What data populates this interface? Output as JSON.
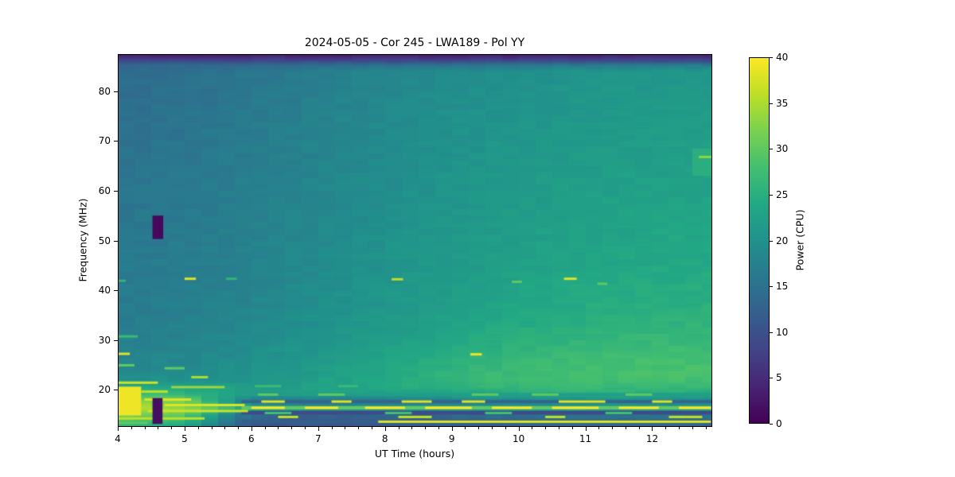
{
  "figure": {
    "background": "#ffffff"
  },
  "chart_data": {
    "type": "heatmap",
    "title": "2024-05-05 - Cor 245 - LWA189 - Pol YY",
    "xlabel": "UT Time (hours)",
    "ylabel": "Frequency (MHz)",
    "x_range": [
      4.0,
      12.9
    ],
    "y_range": [
      12.5,
      87.5
    ],
    "x_major_ticks": [
      4,
      5,
      6,
      7,
      8,
      9,
      10,
      11,
      12
    ],
    "x_minor_step": 0.2,
    "y_major_ticks": [
      20,
      30,
      40,
      50,
      60,
      70,
      80
    ],
    "colorbar": {
      "label": "Power (CPU)",
      "ticks": [
        0,
        5,
        10,
        15,
        20,
        25,
        30,
        35,
        40
      ],
      "range": [
        0,
        40
      ]
    },
    "colormap": {
      "name": "viridis",
      "stops": [
        [
          0,
          "#440154"
        ],
        [
          0.1,
          "#482475"
        ],
        [
          0.2,
          "#414487"
        ],
        [
          0.3,
          "#355f8d"
        ],
        [
          0.4,
          "#2a788e"
        ],
        [
          0.5,
          "#21918c"
        ],
        [
          0.6,
          "#22a884"
        ],
        [
          0.7,
          "#44bf70"
        ],
        [
          0.8,
          "#7ad151"
        ],
        [
          0.9,
          "#bddf26"
        ],
        [
          1,
          "#fde725"
        ]
      ]
    },
    "column_quantization_hours": 0.25,
    "grid": {
      "t": [
        4,
        5,
        6,
        7,
        8,
        9,
        10,
        11,
        12,
        12.9
      ],
      "f": [
        87.5,
        86.9,
        86.1,
        85.2,
        84.0,
        80.0,
        75.0,
        70.0,
        65.0,
        60.0,
        55.0,
        50.0,
        45.0,
        40.0,
        35.0,
        31.0,
        28.0,
        25.5,
        23.5,
        21.8,
        20.3,
        19.0,
        17.6,
        16.2,
        15.0,
        13.8,
        12.5
      ],
      "values": [
        [
          2,
          2,
          2,
          2,
          2,
          2,
          2,
          2,
          2,
          2
        ],
        [
          5,
          5,
          5,
          5,
          5,
          5,
          5,
          5,
          5,
          5
        ],
        [
          9,
          9,
          9,
          9,
          9,
          9,
          9,
          9,
          9,
          9
        ],
        [
          13,
          13.5,
          14,
          14.5,
          15,
          15.5,
          16,
          16.5,
          17,
          17
        ],
        [
          14,
          14.8,
          15.8,
          17,
          18.2,
          19.2,
          20,
          20.5,
          21,
          21
        ],
        [
          14.2,
          15,
          16,
          17.2,
          18.5,
          19.5,
          20.3,
          20.8,
          21.3,
          21.3
        ],
        [
          14.6,
          15.3,
          16.3,
          17.5,
          18.8,
          19.8,
          20.6,
          21.2,
          21.7,
          21.7
        ],
        [
          15,
          15.6,
          16.6,
          17.8,
          19,
          20,
          20.9,
          21.5,
          22,
          22.2
        ],
        [
          15.2,
          15.9,
          16.9,
          18,
          19.2,
          20.3,
          21.2,
          21.9,
          22.4,
          22.6
        ],
        [
          15.5,
          16.1,
          17.1,
          18.3,
          19.5,
          20.6,
          21.5,
          22.2,
          22.8,
          23
        ],
        [
          15.7,
          16.3,
          17.3,
          18.5,
          19.8,
          20.9,
          21.9,
          22.6,
          23.2,
          23.4
        ],
        [
          16,
          16.5,
          17.5,
          18.8,
          20,
          21.3,
          22.3,
          23,
          23.6,
          23.8
        ],
        [
          16.2,
          16.7,
          17.8,
          19,
          20.4,
          21.7,
          22.7,
          23.5,
          24,
          24.2
        ],
        [
          16.5,
          17,
          18,
          19.3,
          20.8,
          22.2,
          23.3,
          24,
          24.6,
          24.8
        ],
        [
          16.8,
          17.3,
          18.4,
          19.8,
          21.3,
          22.8,
          24,
          24.8,
          25.3,
          25.4
        ],
        [
          17.2,
          17.7,
          18.8,
          20.3,
          22,
          23.6,
          24.8,
          25.7,
          26.2,
          26.2
        ],
        [
          17.6,
          18.1,
          19.3,
          21,
          22.8,
          24.5,
          25.8,
          26.7,
          27.2,
          27.2
        ],
        [
          18,
          18.5,
          19.8,
          21.5,
          23.4,
          25.2,
          26.6,
          27.5,
          28,
          27.8
        ],
        [
          18.6,
          19,
          20.3,
          22,
          24,
          25.8,
          27.2,
          28,
          28.4,
          28
        ],
        [
          20,
          20.5,
          21,
          22.5,
          24.3,
          26,
          27.3,
          27.8,
          28,
          27.6
        ],
        [
          25,
          24,
          22,
          22.8,
          24,
          25.2,
          26.2,
          26.6,
          26.6,
          26
        ],
        [
          28,
          26.5,
          21.5,
          21.8,
          22.3,
          23.3,
          24.2,
          24.6,
          24.6,
          24
        ],
        [
          33,
          32,
          16,
          15.3,
          15.8,
          16.3,
          17.3,
          18,
          18,
          17.6
        ],
        [
          36,
          34,
          24,
          21,
          21,
          21,
          21.5,
          22,
          22,
          21.5
        ],
        [
          33,
          30,
          13.5,
          12.5,
          13,
          13.5,
          14.5,
          15,
          15,
          14.8
        ],
        [
          30,
          26,
          12.5,
          11.5,
          12,
          12.5,
          13.5,
          14,
          13.8,
          13.6
        ],
        [
          26,
          22,
          11,
          10.5,
          11,
          11.5,
          12.5,
          13,
          12.8,
          12.6
        ]
      ]
    },
    "features": [
      {
        "type": "rect",
        "t": [
          5.85,
          12.9
        ],
        "f": [
          18.7,
          19.3
        ],
        "v": 22
      },
      {
        "type": "rect",
        "t": [
          5.85,
          12.9
        ],
        "f": [
          17.3,
          17.9
        ],
        "v": 13
      },
      {
        "type": "rect",
        "t": [
          5.85,
          12.9
        ],
        "f": [
          16.0,
          16.7
        ],
        "v": 30
      },
      {
        "type": "rect",
        "t": [
          5.85,
          12.9
        ],
        "f": [
          15.0,
          15.7
        ],
        "v": 9
      },
      {
        "type": "rect",
        "t": [
          5.85,
          12.9
        ],
        "f": [
          13.3,
          13.9
        ],
        "v": 12
      },
      {
        "type": "rect",
        "t": [
          4.0,
          4.35
        ],
        "f": [
          14.8,
          20.6
        ],
        "v": 39
      },
      {
        "type": "line",
        "t": [
          4.0,
          4.6
        ],
        "f": 21.4,
        "v": 37
      },
      {
        "type": "line",
        "t": [
          4.35,
          4.75
        ],
        "f": 19.6,
        "v": 36
      },
      {
        "type": "line",
        "t": [
          4.4,
          5.1
        ],
        "f": 18.0,
        "v": 38
      },
      {
        "type": "line",
        "t": [
          4.7,
          5.9
        ],
        "f": 16.9,
        "v": 38
      },
      {
        "type": "line",
        "t": [
          4.45,
          5.95
        ],
        "f": 15.7,
        "v": 37
      },
      {
        "type": "line",
        "t": [
          4.0,
          5.3
        ],
        "f": 14.2,
        "v": 36
      },
      {
        "type": "line",
        "t": [
          4.8,
          5.6
        ],
        "f": 20.5,
        "v": 34
      },
      {
        "type": "line",
        "t": [
          5.1,
          5.35
        ],
        "f": 22.5,
        "v": 35
      },
      {
        "type": "line",
        "t": [
          4.7,
          5.0
        ],
        "f": 24.3,
        "v": 30
      },
      {
        "type": "line",
        "t": [
          4.0,
          4.25
        ],
        "f": 24.9,
        "v": 30
      },
      {
        "type": "line",
        "t": [
          4.0,
          4.45
        ],
        "f": 13.3,
        "v": 30
      },
      {
        "type": "line",
        "t": [
          4.0,
          4.18
        ],
        "f": 27.2,
        "v": 38
      },
      {
        "type": "line",
        "t": [
          4.0,
          4.3
        ],
        "f": 30.7,
        "v": 27
      },
      {
        "type": "line",
        "t": [
          4.0,
          4.12
        ],
        "f": 41.9,
        "v": 26
      },
      {
        "type": "line",
        "t": [
          5.0,
          5.17
        ],
        "f": 42.3,
        "v": 38
      },
      {
        "type": "line",
        "t": [
          5.62,
          5.78
        ],
        "f": 42.3,
        "v": 26
      },
      {
        "type": "line",
        "t": [
          8.1,
          8.27
        ],
        "f": 42.2,
        "v": 36
      },
      {
        "type": "line",
        "t": [
          9.28,
          9.45
        ],
        "f": 27.1,
        "v": 39
      },
      {
        "type": "line",
        "t": [
          9.9,
          10.05
        ],
        "f": 41.7,
        "v": 30
      },
      {
        "type": "line",
        "t": [
          10.68,
          10.87
        ],
        "f": 42.3,
        "v": 38
      },
      {
        "type": "line",
        "t": [
          11.18,
          11.33
        ],
        "f": 41.3,
        "v": 30
      },
      {
        "type": "dashes",
        "f": 16.35,
        "v": 40,
        "segs": [
          [
            6.0,
            6.5
          ],
          [
            6.8,
            7.3
          ],
          [
            7.7,
            8.3
          ],
          [
            8.6,
            9.3
          ],
          [
            9.6,
            10.2
          ],
          [
            10.5,
            11.2
          ],
          [
            11.5,
            12.1
          ],
          [
            12.4,
            12.88
          ]
        ]
      },
      {
        "type": "dashes",
        "f": 17.6,
        "v": 38,
        "segs": [
          [
            6.15,
            6.5
          ],
          [
            7.2,
            7.5
          ],
          [
            8.25,
            8.7
          ],
          [
            9.15,
            9.5
          ],
          [
            10.6,
            11.3
          ],
          [
            12.0,
            12.3
          ]
        ]
      },
      {
        "type": "dashes",
        "f": 15.3,
        "v": 28,
        "segs": [
          [
            6.2,
            6.6
          ],
          [
            8.0,
            8.4
          ],
          [
            9.5,
            9.9
          ],
          [
            11.3,
            11.7
          ]
        ]
      },
      {
        "type": "dashes",
        "f": 14.5,
        "v": 36,
        "segs": [
          [
            6.4,
            6.7
          ],
          [
            8.2,
            8.7
          ],
          [
            10.4,
            10.7
          ],
          [
            12.25,
            12.75
          ]
        ]
      },
      {
        "type": "dashes",
        "f": 19.0,
        "v": 30,
        "segs": [
          [
            6.1,
            6.4
          ],
          [
            7.0,
            7.4
          ],
          [
            9.3,
            9.7
          ],
          [
            10.2,
            10.6
          ],
          [
            11.6,
            12.0
          ]
        ]
      },
      {
        "type": "dashes",
        "f": 20.7,
        "v": 27,
        "segs": [
          [
            6.05,
            6.45
          ],
          [
            7.3,
            7.6
          ],
          [
            9.4,
            9.8
          ],
          [
            11.1,
            11.5
          ],
          [
            12.5,
            12.85
          ]
        ]
      },
      {
        "type": "line",
        "t": [
          7.9,
          12.88
        ],
        "f": 13.55,
        "v": 38
      },
      {
        "type": "rect",
        "t": [
          12.6,
          12.9
        ],
        "f": [
          63.0,
          68.5
        ],
        "v": 25
      },
      {
        "type": "line",
        "t": [
          12.7,
          12.9
        ],
        "f": 66.8,
        "v": 33
      },
      {
        "type": "rect",
        "t": [
          4.52,
          4.68
        ],
        "f": [
          50.3,
          55.0
        ],
        "v": 0.8
      },
      {
        "type": "rect",
        "t": [
          4.52,
          4.67
        ],
        "f": [
          13.1,
          18.3
        ],
        "v": 1.5
      }
    ]
  }
}
